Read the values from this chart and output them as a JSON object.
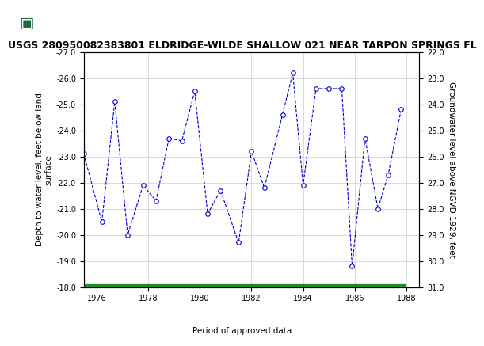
{
  "title": "USGS 280950082383801 ELDRIDGE-WILDE SHALLOW 021 NEAR TARPON SPRINGS FL",
  "header_bg_color": "#1a6b3c",
  "ylabel_left": "Depth to water level, feet below land\nsurface",
  "ylabel_right": "Groundwater level above NGVD 1929, feet",
  "xlim": [
    1975.5,
    1988.5
  ],
  "ylim_left": [
    -27.0,
    -18.0
  ],
  "ylim_right": [
    22.0,
    31.0
  ],
  "xticks": [
    1976,
    1978,
    1980,
    1982,
    1984,
    1986,
    1988
  ],
  "yticks_left": [
    -27.0,
    -26.0,
    -25.0,
    -24.0,
    -23.0,
    -22.0,
    -21.0,
    -20.0,
    -19.0,
    -18.0
  ],
  "yticks_right": [
    22.0,
    23.0,
    24.0,
    25.0,
    26.0,
    27.0,
    28.0,
    29.0,
    30.0,
    31.0
  ],
  "x_data": [
    1975.5,
    1976.2,
    1976.7,
    1977.2,
    1977.8,
    1978.3,
    1978.8,
    1979.3,
    1979.8,
    1980.3,
    1980.8,
    1981.5,
    1982.0,
    1982.5,
    1983.2,
    1983.6,
    1984.0,
    1984.5,
    1985.0,
    1985.5,
    1985.9,
    1986.4,
    1986.9,
    1987.3,
    1987.8
  ],
  "y_data": [
    -23.1,
    -20.5,
    -25.1,
    -20.0,
    -21.9,
    -21.3,
    -23.7,
    -23.6,
    -25.5,
    -20.8,
    -21.7,
    -19.7,
    -23.2,
    -21.8,
    -24.6,
    -26.2,
    -21.9,
    -25.6,
    -25.6,
    -25.6,
    -18.8,
    -23.7,
    -21.0,
    -22.3,
    -24.8
  ],
  "line_color": "#0000cc",
  "marker_facecolor": "white",
  "marker_edgecolor": "#0000cc",
  "marker_size": 4,
  "green_bar_color": "#228B22",
  "legend_label": "Period of approved data",
  "grid_color": "#cccccc",
  "title_fontsize": 9,
  "tick_fontsize": 7,
  "label_fontsize": 7.5
}
